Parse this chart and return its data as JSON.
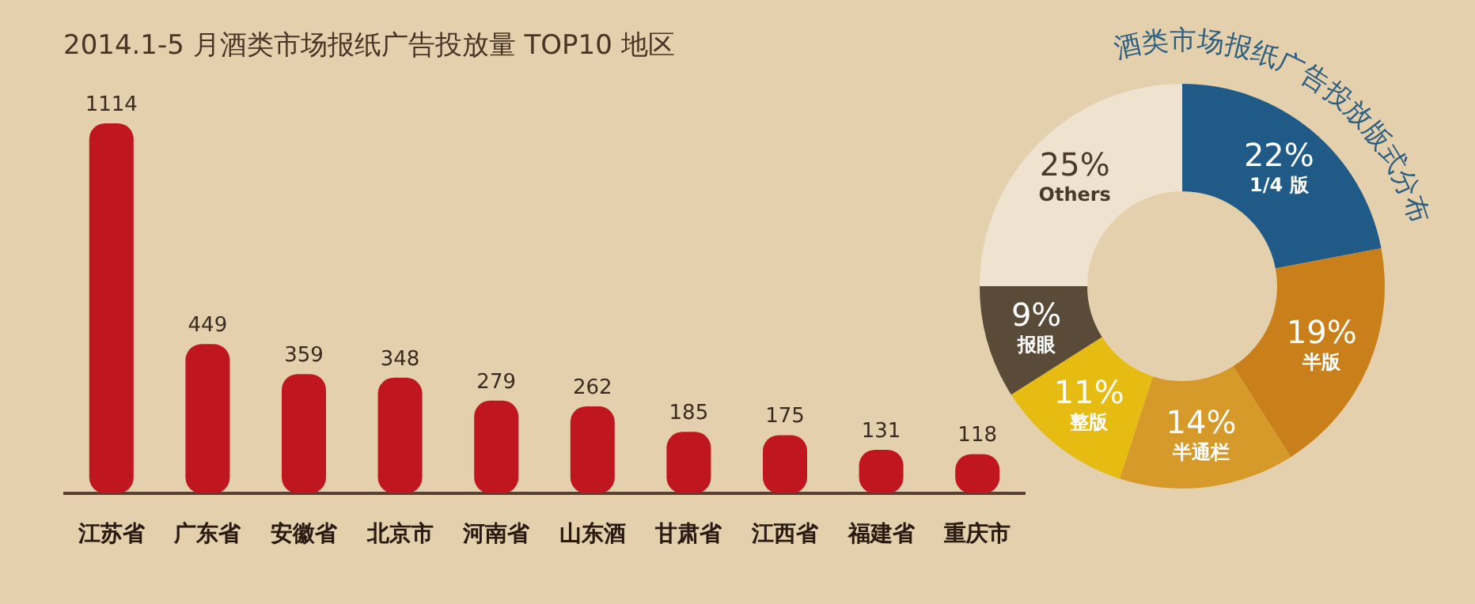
{
  "chart_data": [
    {
      "type": "bar",
      "title": "2014.1-5 月酒类市场报纸广告投放量 TOP10 地区",
      "categories": [
        "江苏省",
        "广东省",
        "安徽省",
        "北京市",
        "河南省",
        "山东酒",
        "甘肃省",
        "江西省",
        "福建省",
        "重庆市"
      ],
      "values": [
        1114,
        449,
        359,
        348,
        279,
        262,
        185,
        175,
        131,
        118
      ],
      "color": "#c0161f",
      "data_labels": true
    },
    {
      "type": "donut",
      "title": "酒类市场报纸广告投放版式分布",
      "categories": [
        "1/4 版",
        "半版",
        "半通栏",
        "整版",
        "报眼",
        "Others"
      ],
      "values": [
        22,
        19,
        14,
        11,
        9,
        25
      ],
      "colors": [
        "#1f5b86",
        "#c9801a",
        "#d69a2a",
        "#e6bc12",
        "#5a4a38",
        "#efe3cf"
      ],
      "value_labels": [
        "22%",
        "19%",
        "14%",
        "11%",
        "9%",
        "25%"
      ]
    }
  ]
}
